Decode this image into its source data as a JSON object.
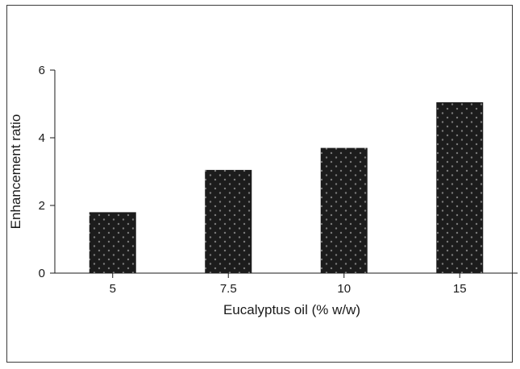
{
  "chart_data": {
    "type": "bar",
    "xlabel": "Eucalyptus oil (% w/w)",
    "ylabel": "Enhancement ratio",
    "categories": [
      "5",
      "7.5",
      "10",
      "15"
    ],
    "values": [
      1.8,
      3.05,
      3.7,
      5.05
    ],
    "ylim": [
      0,
      6
    ],
    "yticks": [
      0,
      2,
      4,
      6
    ],
    "grid": false,
    "bar_fill": "#1c1c1c",
    "bar_dot_color": "#7a7a7a"
  }
}
